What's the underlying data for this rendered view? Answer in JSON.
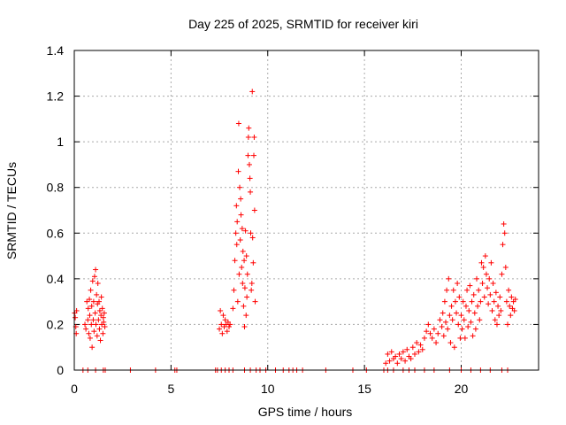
{
  "chart_data": {
    "type": "scatter",
    "title": "Day 225 of 2025, SRMTID for receiver kiri",
    "xlabel": "GPS time / hours",
    "ylabel": "SRMTID / TECUs",
    "xlim": [
      0,
      24
    ],
    "ylim": [
      0,
      1.4
    ],
    "xticks": [
      0,
      5,
      10,
      15,
      20
    ],
    "xtick_labels": [
      "0",
      "5",
      "10",
      "15",
      "20"
    ],
    "yticks": [
      0,
      0.2,
      0.4,
      0.6,
      0.8,
      1,
      1.2,
      1.4
    ],
    "ytick_labels": [
      "0",
      "0.2",
      "0.4",
      "0.6",
      "0.8",
      "1",
      "1.2",
      "1.4"
    ],
    "grid": true,
    "marker": "+",
    "series_color": "#ff0000",
    "series": [
      {
        "name": "SRMTID",
        "points": [
          [
            0.02,
            0.25
          ],
          [
            0.05,
            0.23
          ],
          [
            0.08,
            0.19
          ],
          [
            0.1,
            0.16
          ],
          [
            0.12,
            0.26
          ],
          [
            0.55,
            0.2
          ],
          [
            0.6,
            0.18
          ],
          [
            0.65,
            0.3
          ],
          [
            0.7,
            0.22
          ],
          [
            0.72,
            0.27
          ],
          [
            0.75,
            0.16
          ],
          [
            0.78,
            0.31
          ],
          [
            0.8,
            0.24
          ],
          [
            0.82,
            0.14
          ],
          [
            0.85,
            0.35
          ],
          [
            0.88,
            0.2
          ],
          [
            0.9,
            0.28
          ],
          [
            0.92,
            0.1
          ],
          [
            0.95,
            0.39
          ],
          [
            0.98,
            0.22
          ],
          [
            1.0,
            0.3
          ],
          [
            1.02,
            0.17
          ],
          [
            1.05,
            0.41
          ],
          [
            1.08,
            0.25
          ],
          [
            1.1,
            0.44
          ],
          [
            1.12,
            0.2
          ],
          [
            1.15,
            0.33
          ],
          [
            1.18,
            0.15
          ],
          [
            1.2,
            0.29
          ],
          [
            1.22,
            0.38
          ],
          [
            1.25,
            0.22
          ],
          [
            1.28,
            0.3
          ],
          [
            1.3,
            0.18
          ],
          [
            1.32,
            0.26
          ],
          [
            1.35,
            0.13
          ],
          [
            1.38,
            0.24
          ],
          [
            1.4,
            0.32
          ],
          [
            1.42,
            0.2
          ],
          [
            1.45,
            0.27
          ],
          [
            1.48,
            0.16
          ],
          [
            1.5,
            0.23
          ],
          [
            1.52,
            0.21
          ],
          [
            1.55,
            0.25
          ],
          [
            1.58,
            0.19
          ],
          [
            7.5,
            0.18
          ],
          [
            7.55,
            0.26
          ],
          [
            7.6,
            0.2
          ],
          [
            7.65,
            0.16
          ],
          [
            7.7,
            0.24
          ],
          [
            7.75,
            0.19
          ],
          [
            7.8,
            0.22
          ],
          [
            7.85,
            0.2
          ],
          [
            7.9,
            0.17
          ],
          [
            7.95,
            0.21
          ],
          [
            8.0,
            0.19
          ],
          [
            8.05,
            0.2
          ],
          [
            8.2,
            0.27
          ],
          [
            8.25,
            0.35
          ],
          [
            8.3,
            0.48
          ],
          [
            8.35,
            0.6
          ],
          [
            8.38,
            0.72
          ],
          [
            8.4,
            0.55
          ],
          [
            8.42,
            0.65
          ],
          [
            8.45,
            0.3
          ],
          [
            8.48,
            0.87
          ],
          [
            8.5,
            1.08
          ],
          [
            8.52,
            0.42
          ],
          [
            8.55,
            0.8
          ],
          [
            8.58,
            0.57
          ],
          [
            8.6,
            0.75
          ],
          [
            8.62,
            0.68
          ],
          [
            8.65,
            0.45
          ],
          [
            8.68,
            0.62
          ],
          [
            8.7,
            0.38
          ],
          [
            8.72,
            0.52
          ],
          [
            8.75,
            0.28
          ],
          [
            8.78,
            0.48
          ],
          [
            8.8,
            0.19
          ],
          [
            8.82,
            0.36
          ],
          [
            8.85,
            0.61
          ],
          [
            8.88,
            0.24
          ],
          [
            8.9,
            0.5
          ],
          [
            8.92,
            0.32
          ],
          [
            8.95,
            0.42
          ],
          [
            8.98,
            0.94
          ],
          [
            9.0,
            1.02
          ],
          [
            9.02,
            1.06
          ],
          [
            9.05,
            0.9
          ],
          [
            9.08,
            0.84
          ],
          [
            9.1,
            0.78
          ],
          [
            9.12,
            0.6
          ],
          [
            9.15,
            0.35
          ],
          [
            9.18,
            0.38
          ],
          [
            9.2,
            1.22
          ],
          [
            9.22,
            0.58
          ],
          [
            9.25,
            0.47
          ],
          [
            9.28,
            0.94
          ],
          [
            9.3,
            1.02
          ],
          [
            9.32,
            0.7
          ],
          [
            9.35,
            0.3
          ],
          [
            16.1,
            0.03
          ],
          [
            16.2,
            0.07
          ],
          [
            16.3,
            0.04
          ],
          [
            16.4,
            0.08
          ],
          [
            16.5,
            0.05
          ],
          [
            16.6,
            0.06
          ],
          [
            16.7,
            0.03
          ],
          [
            16.8,
            0.07
          ],
          [
            16.9,
            0.05
          ],
          [
            17.0,
            0.08
          ],
          [
            17.1,
            0.04
          ],
          [
            17.2,
            0.09
          ],
          [
            17.3,
            0.06
          ],
          [
            17.4,
            0.05
          ],
          [
            17.5,
            0.1
          ],
          [
            17.6,
            0.07
          ],
          [
            17.7,
            0.12
          ],
          [
            17.8,
            0.08
          ],
          [
            17.9,
            0.11
          ],
          [
            18.0,
            0.09
          ],
          [
            18.1,
            0.14
          ],
          [
            18.2,
            0.17
          ],
          [
            18.3,
            0.2
          ],
          [
            18.4,
            0.16
          ],
          [
            18.5,
            0.14
          ],
          [
            18.6,
            0.18
          ],
          [
            18.7,
            0.12
          ],
          [
            18.8,
            0.16
          ],
          [
            18.9,
            0.22
          ],
          [
            19.0,
            0.19
          ],
          [
            19.05,
            0.25
          ],
          [
            19.1,
            0.15
          ],
          [
            19.15,
            0.3
          ],
          [
            19.2,
            0.21
          ],
          [
            19.25,
            0.35
          ],
          [
            19.3,
            0.18
          ],
          [
            19.35,
            0.4
          ],
          [
            19.4,
            0.24
          ],
          [
            19.45,
            0.12
          ],
          [
            19.5,
            0.28
          ],
          [
            19.55,
            0.22
          ],
          [
            19.6,
            0.35
          ],
          [
            19.65,
            0.1
          ],
          [
            19.7,
            0.3
          ],
          [
            19.75,
            0.25
          ],
          [
            19.8,
            0.38
          ],
          [
            19.85,
            0.2
          ],
          [
            19.9,
            0.32
          ],
          [
            19.95,
            0.14
          ],
          [
            20.0,
            0.24
          ],
          [
            20.05,
            0.18
          ],
          [
            20.1,
            0.3
          ],
          [
            20.15,
            0.22
          ],
          [
            20.2,
            0.14
          ],
          [
            20.25,
            0.28
          ],
          [
            20.3,
            0.35
          ],
          [
            20.35,
            0.19
          ],
          [
            20.4,
            0.26
          ],
          [
            20.45,
            0.37
          ],
          [
            20.5,
            0.21
          ],
          [
            20.55,
            0.3
          ],
          [
            20.6,
            0.15
          ],
          [
            20.65,
            0.33
          ],
          [
            20.7,
            0.25
          ],
          [
            20.75,
            0.18
          ],
          [
            20.8,
            0.4
          ],
          [
            20.85,
            0.28
          ],
          [
            20.9,
            0.35
          ],
          [
            20.95,
            0.22
          ],
          [
            21.0,
            0.3
          ],
          [
            21.05,
            0.47
          ],
          [
            21.1,
            0.38
          ],
          [
            21.15,
            0.45
          ],
          [
            21.2,
            0.32
          ],
          [
            21.25,
            0.5
          ],
          [
            21.3,
            0.42
          ],
          [
            21.35,
            0.36
          ],
          [
            21.4,
            0.29
          ],
          [
            21.45,
            0.4
          ],
          [
            21.5,
            0.33
          ],
          [
            21.55,
            0.47
          ],
          [
            21.6,
            0.26
          ],
          [
            21.65,
            0.38
          ],
          [
            21.7,
            0.3
          ],
          [
            21.75,
            0.22
          ],
          [
            21.8,
            0.34
          ],
          [
            21.85,
            0.2
          ],
          [
            21.9,
            0.28
          ],
          [
            21.95,
            0.24
          ],
          [
            22.0,
            0.32
          ],
          [
            22.05,
            0.26
          ],
          [
            22.1,
            0.42
          ],
          [
            22.15,
            0.55
          ],
          [
            22.2,
            0.64
          ],
          [
            22.25,
            0.6
          ],
          [
            22.3,
            0.45
          ],
          [
            22.35,
            0.3
          ],
          [
            22.4,
            0.2
          ],
          [
            22.45,
            0.35
          ],
          [
            22.5,
            0.28
          ],
          [
            22.55,
            0.24
          ],
          [
            22.6,
            0.32
          ],
          [
            22.65,
            0.27
          ],
          [
            22.7,
            0.3
          ],
          [
            22.75,
            0.26
          ],
          [
            22.8,
            0.31
          ],
          [
            0.45,
            0.0
          ],
          [
            0.7,
            0.0
          ],
          [
            1.1,
            0.0
          ],
          [
            1.5,
            0.0
          ],
          [
            1.6,
            0.0
          ],
          [
            2.9,
            0.0
          ],
          [
            4.2,
            0.0
          ],
          [
            5.2,
            0.0
          ],
          [
            5.3,
            0.0
          ],
          [
            7.3,
            0.0
          ],
          [
            7.4,
            0.0
          ],
          [
            7.6,
            0.0
          ],
          [
            7.8,
            0.0
          ],
          [
            8.0,
            0.0
          ],
          [
            8.2,
            0.0
          ],
          [
            8.8,
            0.0
          ],
          [
            9.1,
            0.0
          ],
          [
            9.4,
            0.0
          ],
          [
            9.6,
            0.0
          ],
          [
            9.9,
            0.0
          ],
          [
            10.4,
            0.0
          ],
          [
            10.8,
            0.0
          ],
          [
            11.1,
            0.0
          ],
          [
            11.3,
            0.0
          ],
          [
            11.5,
            0.0
          ],
          [
            11.8,
            0.0
          ],
          [
            13.0,
            0.0
          ],
          [
            14.4,
            0.0
          ],
          [
            15.1,
            0.0
          ],
          [
            16.0,
            0.0
          ],
          [
            16.2,
            0.0
          ],
          [
            16.5,
            0.0
          ],
          [
            17.0,
            0.0
          ],
          [
            17.3,
            0.0
          ],
          [
            17.6,
            0.0
          ],
          [
            18.1,
            0.0
          ],
          [
            18.6,
            0.0
          ],
          [
            19.4,
            0.0
          ],
          [
            20.0,
            0.0
          ],
          [
            20.5,
            0.0
          ],
          [
            21.0,
            0.0
          ],
          [
            21.5,
            0.0
          ],
          [
            22.1,
            0.0
          ],
          [
            22.4,
            0.0
          ]
        ]
      }
    ]
  }
}
